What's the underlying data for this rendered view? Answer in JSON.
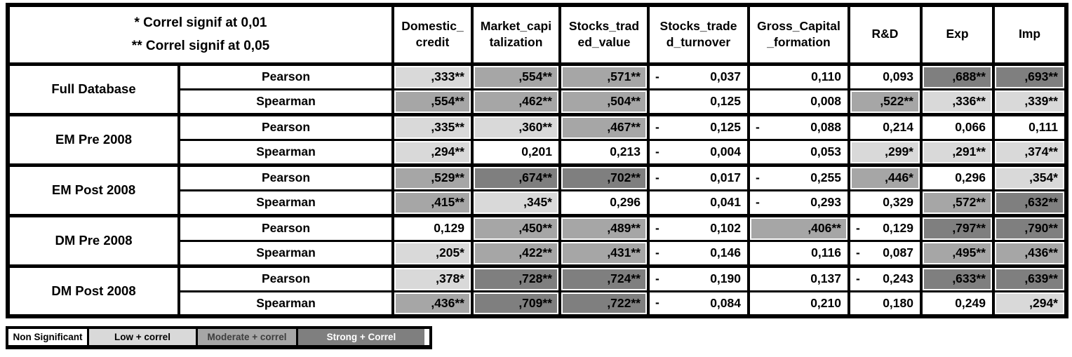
{
  "header": {
    "note_line1": "* Correl signif at 0,01",
    "note_line2": "** Correl signif at 0,05",
    "columns": [
      {
        "label": "Domestic_credit",
        "line1": "Domestic_",
        "line2": "credit"
      },
      {
        "label": "Market_capitalization",
        "line1": "Market_capi",
        "line2": "talization"
      },
      {
        "label": "Stocks_traded_value",
        "line1": "Stocks_trad",
        "line2": "ed_value"
      },
      {
        "label": "Stocks_traded_turnover",
        "line1": "Stocks_trade",
        "line2": "d_turnover"
      },
      {
        "label": "Gross_Capital_formation",
        "line1": "Gross_Capital",
        "line2": "_formation"
      },
      {
        "label": "R&D",
        "line1": "R&D",
        "line2": ""
      },
      {
        "label": "Exp",
        "line1": "Exp",
        "line2": ""
      },
      {
        "label": "Imp",
        "line1": "Imp",
        "line2": ""
      }
    ]
  },
  "groups": [
    {
      "name": "Full Database",
      "rows": [
        {
          "method": "Pearson",
          "cells": [
            {
              "t": ",333**",
              "neg": false,
              "s": "low"
            },
            {
              "t": ",554**",
              "neg": false,
              "s": "mod"
            },
            {
              "t": ",571**",
              "neg": false,
              "s": "mod"
            },
            {
              "t": "0,037",
              "neg": true,
              "s": "none"
            },
            {
              "t": "0,110",
              "neg": false,
              "s": "none"
            },
            {
              "t": "0,093",
              "neg": false,
              "s": "none"
            },
            {
              "t": ",688**",
              "neg": false,
              "s": "strong"
            },
            {
              "t": ",693**",
              "neg": false,
              "s": "strong"
            }
          ]
        },
        {
          "method": "Spearman",
          "cells": [
            {
              "t": ",554**",
              "neg": false,
              "s": "mod"
            },
            {
              "t": ",462**",
              "neg": false,
              "s": "mod"
            },
            {
              "t": ",504**",
              "neg": false,
              "s": "mod"
            },
            {
              "t": "0,125",
              "neg": false,
              "s": "none"
            },
            {
              "t": "0,008",
              "neg": false,
              "s": "none"
            },
            {
              "t": ",522**",
              "neg": false,
              "s": "mod"
            },
            {
              "t": ",336**",
              "neg": false,
              "s": "low"
            },
            {
              "t": ",339**",
              "neg": false,
              "s": "low"
            }
          ]
        }
      ]
    },
    {
      "name": "EM Pre 2008",
      "rows": [
        {
          "method": "Pearson",
          "cells": [
            {
              "t": ",335**",
              "neg": false,
              "s": "low"
            },
            {
              "t": ",360**",
              "neg": false,
              "s": "low"
            },
            {
              "t": ",467**",
              "neg": false,
              "s": "mod"
            },
            {
              "t": "0,125",
              "neg": true,
              "s": "none"
            },
            {
              "t": "0,088",
              "neg": true,
              "s": "none"
            },
            {
              "t": "0,214",
              "neg": false,
              "s": "none"
            },
            {
              "t": "0,066",
              "neg": false,
              "s": "none"
            },
            {
              "t": "0,111",
              "neg": false,
              "s": "none"
            }
          ]
        },
        {
          "method": "Spearman",
          "cells": [
            {
              "t": ",294**",
              "neg": false,
              "s": "low"
            },
            {
              "t": "0,201",
              "neg": false,
              "s": "none"
            },
            {
              "t": "0,213",
              "neg": false,
              "s": "none"
            },
            {
              "t": "0,004",
              "neg": true,
              "s": "none"
            },
            {
              "t": "0,053",
              "neg": false,
              "s": "none"
            },
            {
              "t": ",299*",
              "neg": false,
              "s": "low"
            },
            {
              "t": ",291**",
              "neg": false,
              "s": "low"
            },
            {
              "t": ",374**",
              "neg": false,
              "s": "low"
            }
          ]
        }
      ]
    },
    {
      "name": "EM Post 2008",
      "rows": [
        {
          "method": "Pearson",
          "cells": [
            {
              "t": ",529**",
              "neg": false,
              "s": "mod"
            },
            {
              "t": ",674**",
              "neg": false,
              "s": "strong"
            },
            {
              "t": ",702**",
              "neg": false,
              "s": "strong"
            },
            {
              "t": "0,017",
              "neg": true,
              "s": "none"
            },
            {
              "t": "0,255",
              "neg": true,
              "s": "none"
            },
            {
              "t": ",446*",
              "neg": false,
              "s": "mod"
            },
            {
              "t": "0,296",
              "neg": false,
              "s": "none"
            },
            {
              "t": ",354*",
              "neg": false,
              "s": "low"
            }
          ]
        },
        {
          "method": "Spearman",
          "cells": [
            {
              "t": ",415**",
              "neg": false,
              "s": "mod"
            },
            {
              "t": ",345*",
              "neg": false,
              "s": "low"
            },
            {
              "t": "0,296",
              "neg": false,
              "s": "none"
            },
            {
              "t": "0,041",
              "neg": false,
              "s": "none"
            },
            {
              "t": "0,293",
              "neg": true,
              "s": "none"
            },
            {
              "t": "0,329",
              "neg": false,
              "s": "none"
            },
            {
              "t": ",572**",
              "neg": false,
              "s": "mod"
            },
            {
              "t": ",632**",
              "neg": false,
              "s": "strong"
            }
          ]
        }
      ]
    },
    {
      "name": "DM Pre 2008",
      "rows": [
        {
          "method": "Pearson",
          "cells": [
            {
              "t": "0,129",
              "neg": false,
              "s": "none"
            },
            {
              "t": ",450**",
              "neg": false,
              "s": "mod"
            },
            {
              "t": ",489**",
              "neg": false,
              "s": "mod"
            },
            {
              "t": "0,102",
              "neg": true,
              "s": "none"
            },
            {
              "t": ",406**",
              "neg": false,
              "s": "mod"
            },
            {
              "t": "0,129",
              "neg": true,
              "s": "none"
            },
            {
              "t": ",797**",
              "neg": false,
              "s": "strong"
            },
            {
              "t": ",790**",
              "neg": false,
              "s": "strong"
            }
          ]
        },
        {
          "method": "Spearman",
          "cells": [
            {
              "t": ",205*",
              "neg": false,
              "s": "low"
            },
            {
              "t": ",422**",
              "neg": false,
              "s": "mod"
            },
            {
              "t": ",431**",
              "neg": false,
              "s": "mod"
            },
            {
              "t": "0,146",
              "neg": true,
              "s": "none"
            },
            {
              "t": "0,116",
              "neg": false,
              "s": "none"
            },
            {
              "t": "0,087",
              "neg": true,
              "s": "none"
            },
            {
              "t": ",495**",
              "neg": false,
              "s": "mod"
            },
            {
              "t": ",436**",
              "neg": false,
              "s": "mod"
            }
          ]
        }
      ]
    },
    {
      "name": "DM Post 2008",
      "rows": [
        {
          "method": "Pearson",
          "cells": [
            {
              "t": ",378*",
              "neg": false,
              "s": "low"
            },
            {
              "t": ",728**",
              "neg": false,
              "s": "strong"
            },
            {
              "t": ",724**",
              "neg": false,
              "s": "strong"
            },
            {
              "t": "0,190",
              "neg": true,
              "s": "none"
            },
            {
              "t": "0,137",
              "neg": false,
              "s": "none"
            },
            {
              "t": "0,243",
              "neg": true,
              "s": "none"
            },
            {
              "t": ",633**",
              "neg": false,
              "s": "strong"
            },
            {
              "t": ",639**",
              "neg": false,
              "s": "strong"
            }
          ]
        },
        {
          "method": "Spearman",
          "cells": [
            {
              "t": ",436**",
              "neg": false,
              "s": "mod"
            },
            {
              "t": ",709**",
              "neg": false,
              "s": "strong"
            },
            {
              "t": ",722**",
              "neg": false,
              "s": "strong"
            },
            {
              "t": "0,084",
              "neg": true,
              "s": "none"
            },
            {
              "t": "0,210",
              "neg": false,
              "s": "none"
            },
            {
              "t": "0,180",
              "neg": false,
              "s": "none"
            },
            {
              "t": "0,249",
              "neg": false,
              "s": "none"
            },
            {
              "t": ",294*",
              "neg": false,
              "s": "low"
            }
          ]
        }
      ]
    }
  ],
  "legend": {
    "items": [
      {
        "label": "Non Significant",
        "shade": "none"
      },
      {
        "label": "Low + correl",
        "shade": "low"
      },
      {
        "label": "Moderate + correl",
        "shade": "mod"
      },
      {
        "label": "Strong + Correl",
        "shade": "strong"
      }
    ]
  },
  "colors": {
    "non_significant": "#ffffff",
    "low": "#d9d9d9",
    "moderate": "#a6a6a6",
    "strong": "#7f7f7f",
    "border": "#000000",
    "strong_text": "#ffffff"
  },
  "chart_data": {
    "type": "table",
    "title": "Correlation coefficients (Pearson / Spearman) with significance shading",
    "notes": [
      "* Correl signif at 0,01",
      "** Correl signif at 0,05"
    ],
    "columns": [
      "Domestic_credit",
      "Market_capitalization",
      "Stocks_traded_value",
      "Stocks_traded_turnover",
      "Gross_Capital_formation",
      "R&D",
      "Exp",
      "Imp"
    ],
    "legend": [
      "Non Significant",
      "Low + correl",
      "Moderate + correl",
      "Strong + Correl"
    ],
    "rows": [
      {
        "group": "Full Database",
        "method": "Pearson",
        "values": [
          0.333,
          0.554,
          0.571,
          -0.037,
          0.11,
          0.093,
          0.688,
          0.693
        ],
        "significance": [
          "**",
          "**",
          "**",
          "",
          "",
          "",
          "**",
          "**"
        ],
        "strength": [
          "low",
          "moderate",
          "moderate",
          "ns",
          "ns",
          "ns",
          "strong",
          "strong"
        ]
      },
      {
        "group": "Full Database",
        "method": "Spearman",
        "values": [
          0.554,
          0.462,
          0.504,
          0.125,
          0.008,
          0.522,
          0.336,
          0.339
        ],
        "significance": [
          "**",
          "**",
          "**",
          "",
          "",
          "**",
          "**",
          "**"
        ],
        "strength": [
          "moderate",
          "moderate",
          "moderate",
          "ns",
          "ns",
          "moderate",
          "low",
          "low"
        ]
      },
      {
        "group": "EM Pre 2008",
        "method": "Pearson",
        "values": [
          0.335,
          0.36,
          0.467,
          -0.125,
          -0.088,
          0.214,
          0.066,
          0.111
        ],
        "significance": [
          "**",
          "**",
          "**",
          "",
          "",
          "",
          "",
          ""
        ],
        "strength": [
          "low",
          "low",
          "moderate",
          "ns",
          "ns",
          "ns",
          "ns",
          "ns"
        ]
      },
      {
        "group": "EM Pre 2008",
        "method": "Spearman",
        "values": [
          0.294,
          0.201,
          0.213,
          -0.004,
          0.053,
          0.299,
          0.291,
          0.374
        ],
        "significance": [
          "**",
          "",
          "",
          "",
          "",
          "*",
          "**",
          "**"
        ],
        "strength": [
          "low",
          "ns",
          "ns",
          "ns",
          "ns",
          "low",
          "low",
          "low"
        ]
      },
      {
        "group": "EM Post 2008",
        "method": "Pearson",
        "values": [
          0.529,
          0.674,
          0.702,
          -0.017,
          -0.255,
          0.446,
          0.296,
          0.354
        ],
        "significance": [
          "**",
          "**",
          "**",
          "",
          "",
          "*",
          "",
          "*"
        ],
        "strength": [
          "moderate",
          "strong",
          "strong",
          "ns",
          "ns",
          "moderate",
          "ns",
          "low"
        ]
      },
      {
        "group": "EM Post 2008",
        "method": "Spearman",
        "values": [
          0.415,
          0.345,
          0.296,
          0.041,
          -0.293,
          0.329,
          0.572,
          0.632
        ],
        "significance": [
          "**",
          "*",
          "",
          "",
          "",
          "",
          "**",
          "**"
        ],
        "strength": [
          "moderate",
          "low",
          "ns",
          "ns",
          "ns",
          "ns",
          "moderate",
          "strong"
        ]
      },
      {
        "group": "DM Pre 2008",
        "method": "Pearson",
        "values": [
          0.129,
          0.45,
          0.489,
          -0.102,
          0.406,
          -0.129,
          0.797,
          0.79
        ],
        "significance": [
          "",
          "**",
          "**",
          "",
          "**",
          "",
          "**",
          "**"
        ],
        "strength": [
          "ns",
          "moderate",
          "moderate",
          "ns",
          "moderate",
          "ns",
          "strong",
          "strong"
        ]
      },
      {
        "group": "DM Pre 2008",
        "method": "Spearman",
        "values": [
          0.205,
          0.422,
          0.431,
          -0.146,
          0.116,
          -0.087,
          0.495,
          0.436
        ],
        "significance": [
          "*",
          "**",
          "**",
          "",
          "",
          "",
          "**",
          "**"
        ],
        "strength": [
          "low",
          "moderate",
          "moderate",
          "ns",
          "ns",
          "ns",
          "moderate",
          "moderate"
        ]
      },
      {
        "group": "DM Post 2008",
        "method": "Pearson",
        "values": [
          0.378,
          0.728,
          0.724,
          -0.19,
          0.137,
          -0.243,
          0.633,
          0.639
        ],
        "significance": [
          "*",
          "**",
          "**",
          "",
          "",
          "",
          "**",
          "**"
        ],
        "strength": [
          "low",
          "strong",
          "strong",
          "ns",
          "ns",
          "ns",
          "strong",
          "strong"
        ]
      },
      {
        "group": "DM Post 2008",
        "method": "Spearman",
        "values": [
          0.436,
          0.709,
          0.722,
          -0.084,
          0.21,
          0.18,
          0.249,
          0.294
        ],
        "significance": [
          "**",
          "**",
          "**",
          "",
          "",
          "",
          "",
          "*"
        ],
        "strength": [
          "moderate",
          "strong",
          "strong",
          "ns",
          "ns",
          "ns",
          "ns",
          "low"
        ]
      }
    ]
  }
}
